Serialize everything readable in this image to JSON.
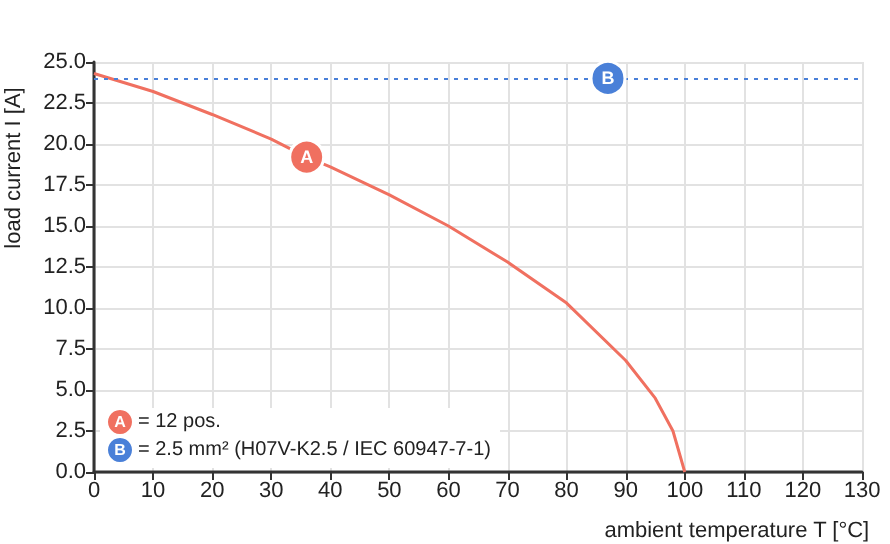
{
  "chart_data": {
    "type": "line",
    "xlabel": "ambient temperature T [°C]",
    "ylabel": "load current I [A]",
    "x": [
      0,
      10,
      20,
      30,
      36,
      40,
      50,
      60,
      70,
      80,
      90,
      95,
      98,
      100
    ],
    "series": [
      {
        "color": "#f07060",
        "values": [
          24.3,
          23.2,
          21.8,
          20.3,
          19.2,
          18.6,
          16.9,
          15.0,
          12.8,
          10.3,
          6.8,
          4.5,
          2.5,
          0
        ]
      }
    ],
    "xlim": [
      0,
      130
    ],
    "xticks": [
      0,
      10,
      20,
      30,
      40,
      50,
      60,
      70,
      80,
      90,
      100,
      110,
      120,
      130
    ],
    "ylim": [
      0,
      25
    ],
    "yticks": [
      {
        "value": 0,
        "label": "0.0"
      },
      {
        "value": 2.5,
        "label": "2.5"
      },
      {
        "value": 5,
        "label": "5.0"
      },
      {
        "value": 7.5,
        "label": "7.5"
      },
      {
        "value": 10,
        "label": "10.0"
      },
      {
        "value": 12.5,
        "label": "12.5"
      },
      {
        "value": 15,
        "label": "15.0"
      },
      {
        "value": 17.5,
        "label": "17.5"
      },
      {
        "value": 20,
        "label": "20.0"
      },
      {
        "value": 22.5,
        "label": "22.5"
      },
      {
        "value": 25,
        "label": "25.0"
      }
    ],
    "ref_lines": [
      {
        "axis": "y",
        "value": 24,
        "color": "#4a80d8",
        "line_style": "dotted"
      }
    ],
    "annotations": [
      {
        "text": "A",
        "x": 36,
        "y": 19.2
      },
      {
        "text": "B",
        "x": 87,
        "y": 24
      },
      "= 12 pos.",
      "= 2.5 mm² (H07V-K2.5 / IEC 60947-7-1)"
    ],
    "grid": true,
    "marker": "none",
    "line_style": "solid"
  }
}
